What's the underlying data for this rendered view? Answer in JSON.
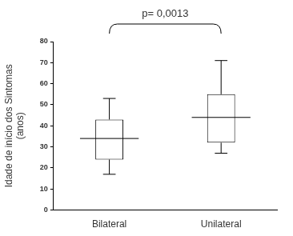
{
  "chart_data": {
    "type": "boxplot",
    "annotation": "p= 0,0013",
    "y_label": [
      "Idade de início dos Sintomas",
      "(anos)"
    ],
    "categories": [
      "Bilateral",
      "Unilateral"
    ],
    "values": [
      {
        "min": 17,
        "q1": 24,
        "median": 34,
        "q3": 43,
        "max": 53
      },
      {
        "min": 27,
        "q1": 32,
        "median": 44,
        "q3": 55,
        "max": 71
      }
    ],
    "color": "#000000",
    "ylim": [
      0,
      80
    ],
    "yticks": [
      0,
      10,
      20,
      30,
      40,
      50,
      60,
      70,
      80
    ],
    "grid": false
  }
}
